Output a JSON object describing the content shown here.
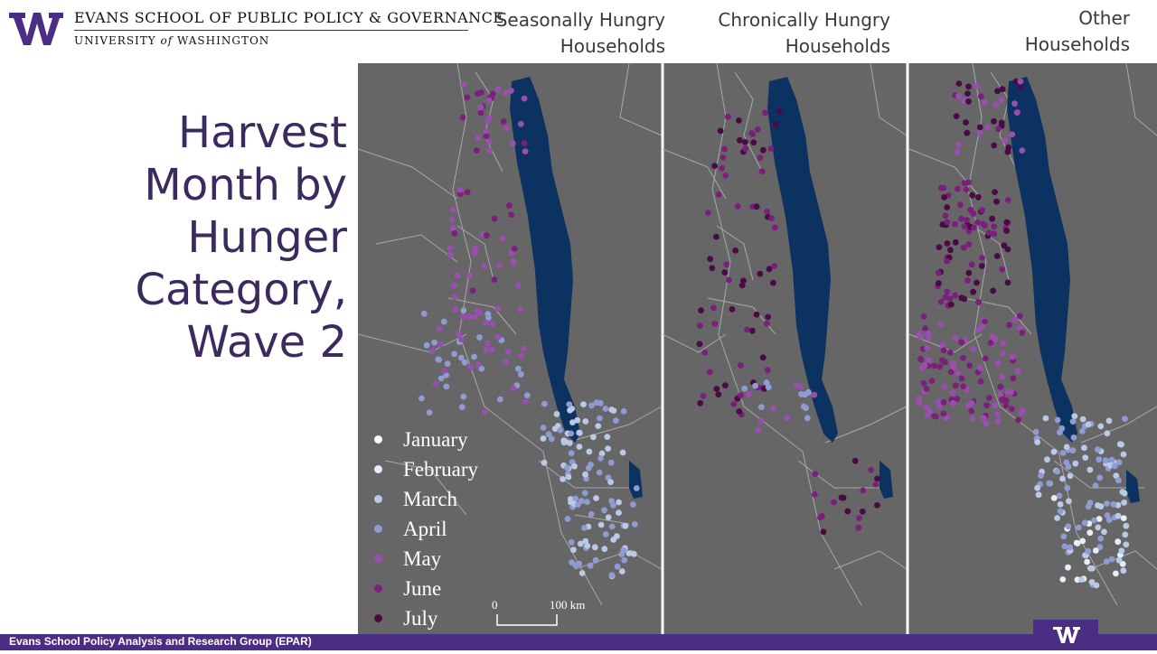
{
  "header": {
    "school_name": "EVANS SCHOOL OF PUBLIC POLICY & GOVERNANCE",
    "university_pre": "UNIVERSITY",
    "university_of": "of",
    "university_post": "WASHINGTON",
    "logo_icon": "uw-w-logo"
  },
  "columns": [
    {
      "line1": "Seasonally Hungry",
      "line2": "Households"
    },
    {
      "line1": "Chronically Hungry",
      "line2": "Households"
    },
    {
      "line1": "Other",
      "line2": "Households"
    }
  ],
  "title": {
    "lines": [
      "Harvest",
      "Month by",
      "Hunger",
      "Category,",
      "Wave 2"
    ]
  },
  "legend": [
    {
      "label": "January",
      "color": "#ffffff"
    },
    {
      "label": "February",
      "color": "#e6eef7"
    },
    {
      "label": "March",
      "color": "#b9c9e6"
    },
    {
      "label": "April",
      "color": "#8f9bd3"
    },
    {
      "label": "May",
      "color": "#9a4fb0"
    },
    {
      "label": "June",
      "color": "#7c1f7c"
    },
    {
      "label": "July",
      "color": "#4a0a45"
    }
  ],
  "scale": {
    "zero": "0",
    "distance": "100 km"
  },
  "colors": {
    "lake": "#0b3260",
    "map_bg": "#666666",
    "borders": "#a8a8a8",
    "footer": "#4b2e83",
    "title": "#3b2a5e"
  },
  "footer": {
    "text": "Evans School Policy Analysis and Research Group (EPAR)"
  }
}
